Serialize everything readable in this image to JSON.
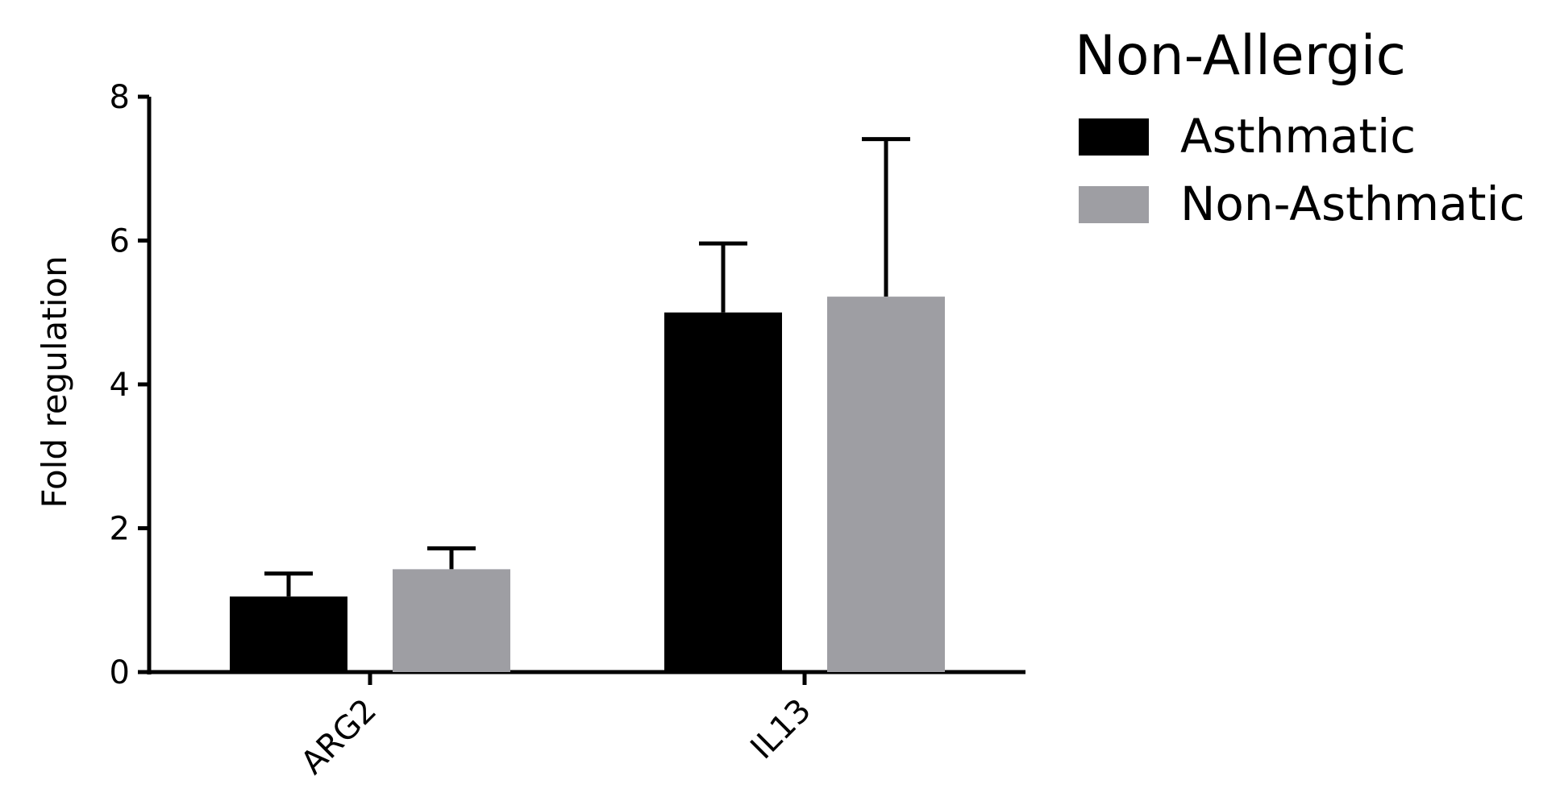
{
  "chart_data": {
    "type": "bar",
    "legend_title": "Non-Allergic",
    "y_label": "Fold regulation",
    "categories": [
      "ARG2",
      "IL13"
    ],
    "series": [
      {
        "name": "Asthmatic",
        "color": "#000000",
        "values": [
          1.05,
          5.0
        ],
        "errors": [
          0.32,
          0.96
        ]
      },
      {
        "name": "Non-Asthmatic",
        "color": "#9e9ea3",
        "values": [
          1.43,
          5.22
        ],
        "errors": [
          0.29,
          2.19
        ]
      }
    ],
    "ylim": [
      0,
      8
    ],
    "yticks": [
      0,
      2,
      4,
      6,
      8
    ],
    "grid": false,
    "legend": "right"
  }
}
